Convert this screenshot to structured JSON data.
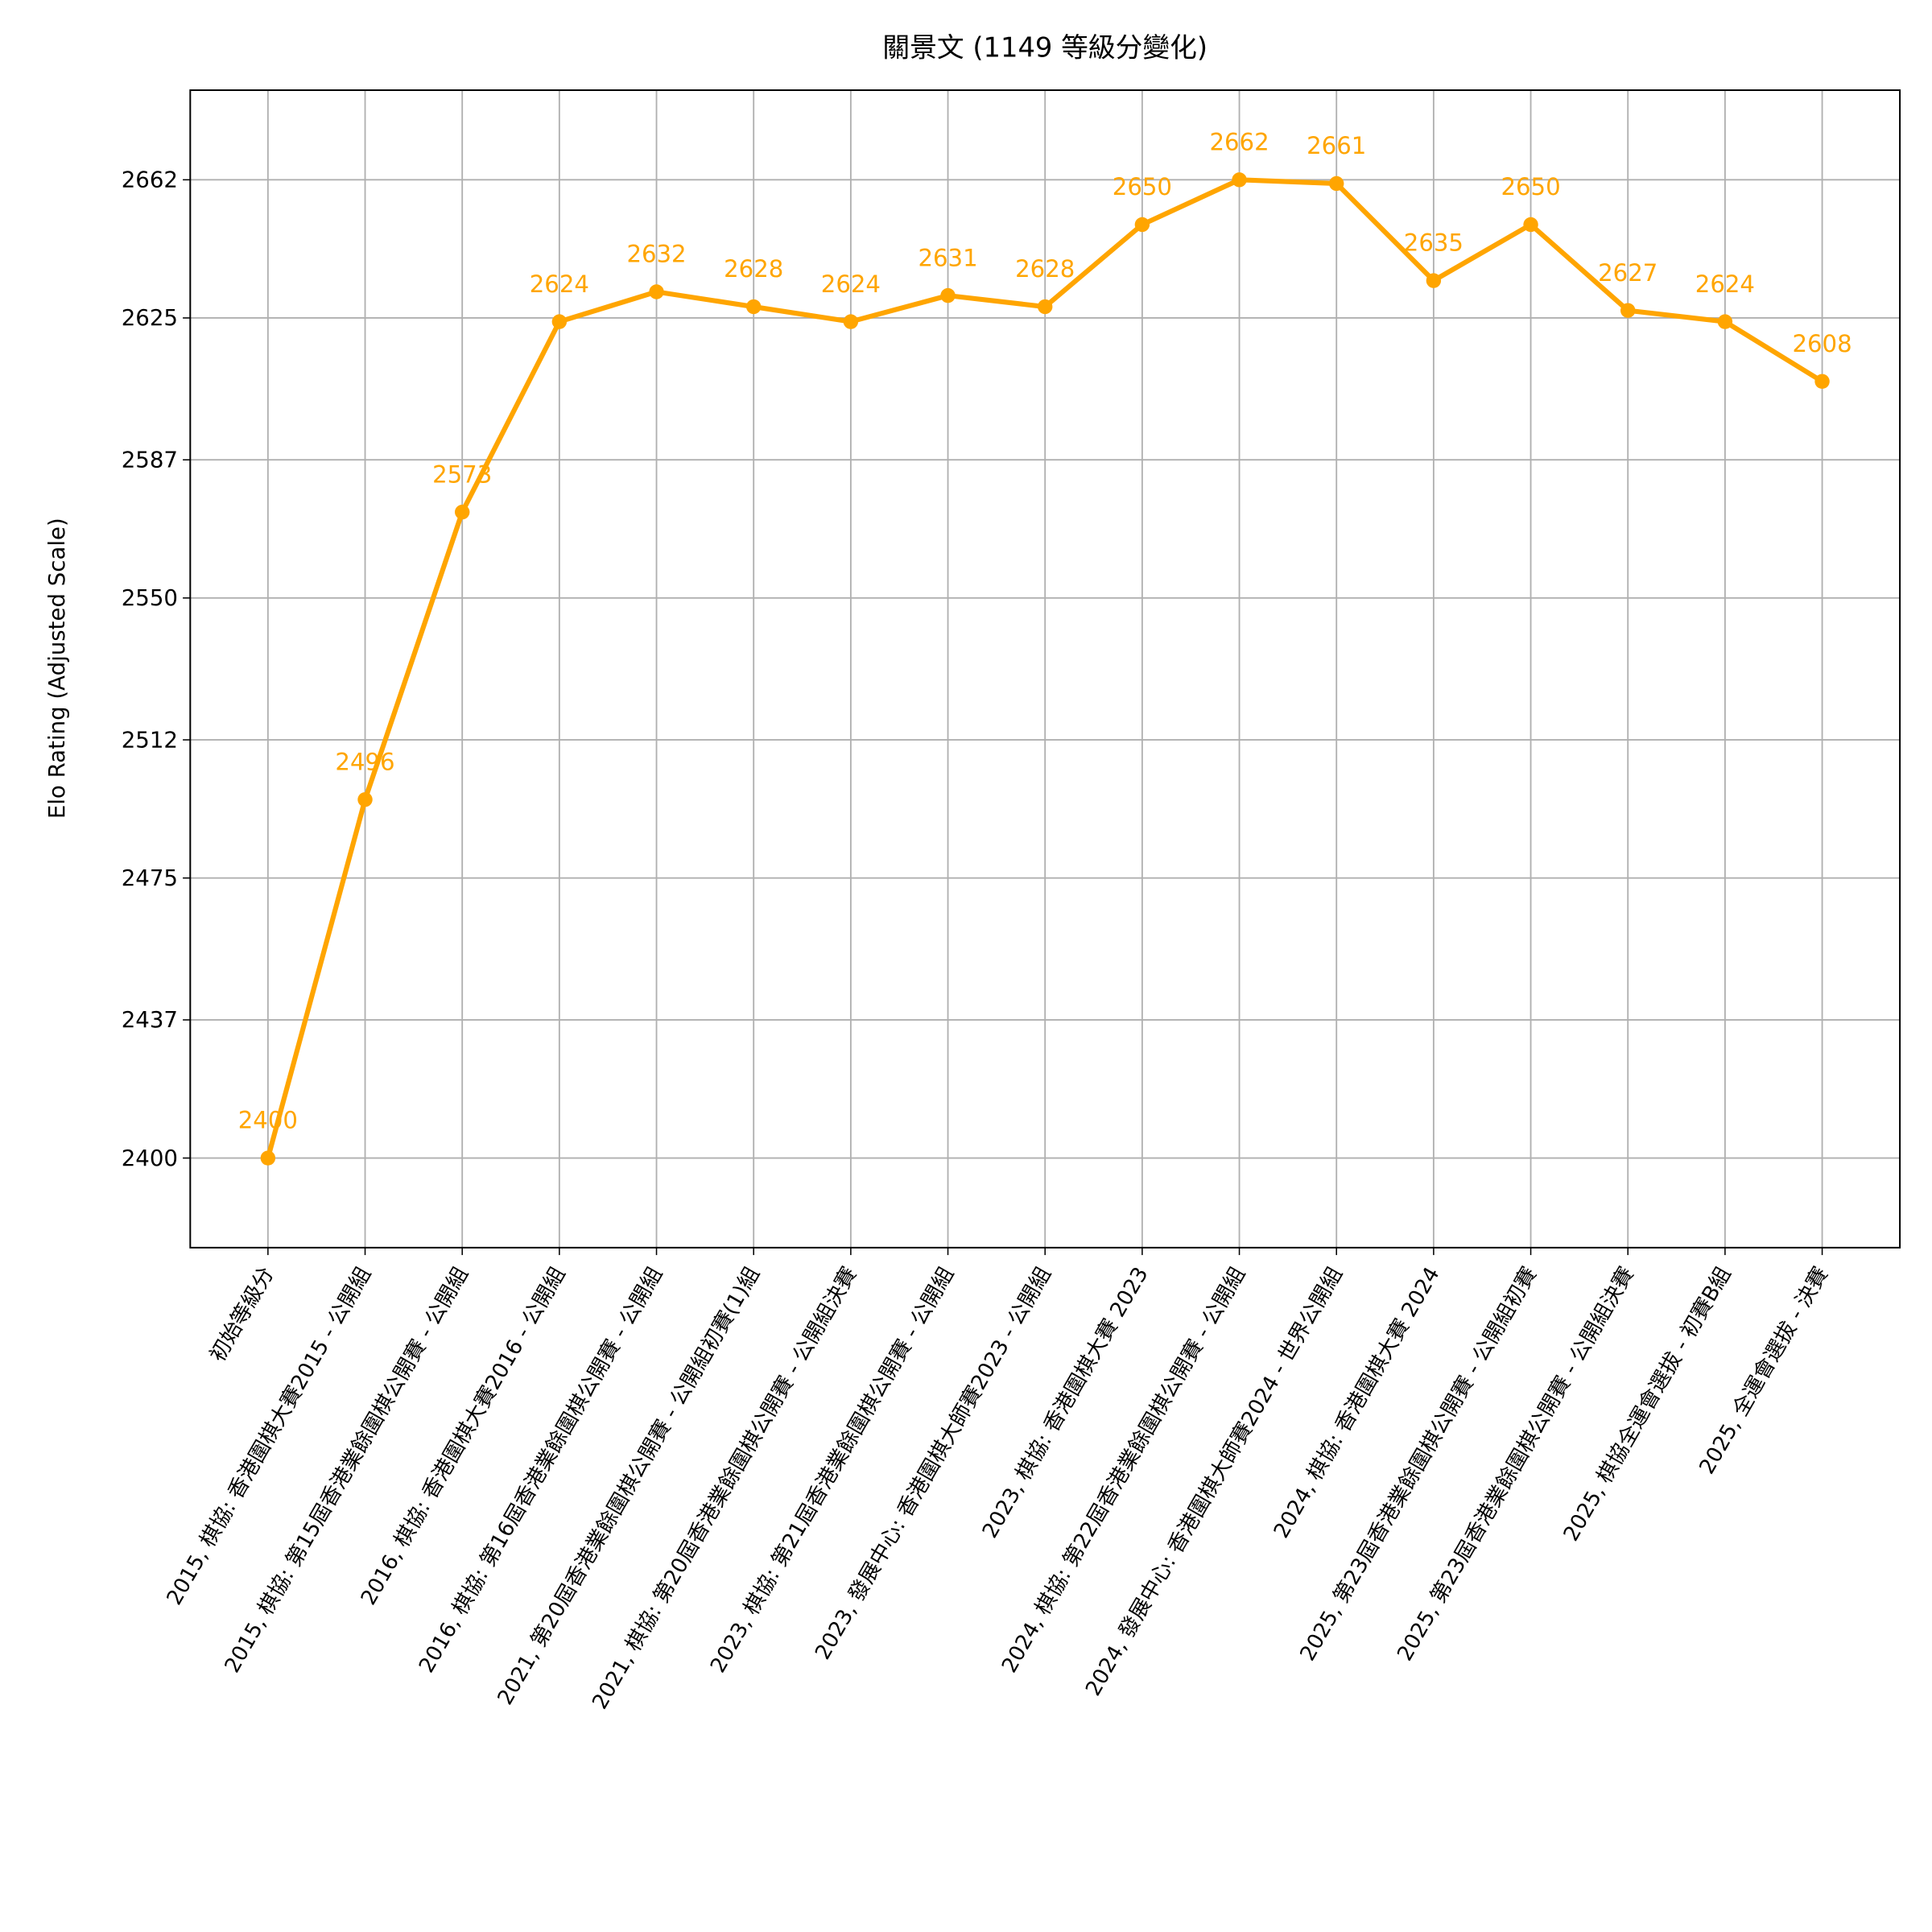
{
  "chart_data": {
    "type": "line",
    "title": "關景文 (1149 等級分變化)",
    "y_label": "Elo Rating (Adjusted Scale)",
    "categories": [
      "初始等級分",
      "2015, 棋協: 香港圍棋大賽2015 - 公開組",
      "2015, 棋協: 第15屆香港業餘圍棋公開賽 - 公開組",
      "2016, 棋協: 香港圍棋大賽2016 - 公開組",
      "2016, 棋協: 第16屆香港業餘圍棋公開賽 - 公開組",
      "2021, 第20屆香港業餘圍棋公開賽 - 公開組初賽(1)組",
      "2021, 棋協: 第20屆香港業餘圍棋公開賽 - 公開組決賽",
      "2023, 棋協: 第21屆香港業餘圍棋公開賽 - 公開組",
      "2023, 發展中心: 香港圍棋大師賽2023 - 公開組",
      "2023, 棋協: 香港圍棋大賽 2023",
      "2024, 棋協: 第22屆香港業餘圍棋公開賽 - 公開組",
      "2024, 發展中心: 香港圍棋大師賽2024 - 世界公開組",
      "2024, 棋協: 香港圍棋大賽 2024",
      "2025, 第23屆香港業餘圍棋公開賽 - 公開組初賽",
      "2025, 第23屆香港業餘圍棋公開賽 - 公開組決賽",
      "2025, 棋協全運會選拔 - 初賽B組",
      "2025, 全運會選拔 - 決賽"
    ],
    "values": [
      2400,
      2496,
      2573,
      2624,
      2632,
      2628,
      2624,
      2631,
      2628,
      2650,
      2662,
      2661,
      2635,
      2650,
      2627,
      2624,
      2608
    ],
    "color": "#ffa500",
    "ylim": [
      2376,
      2686
    ],
    "yticks": [
      2400,
      2437,
      2475,
      2512,
      2550,
      2587,
      2625,
      2662
    ],
    "grid": true
  }
}
